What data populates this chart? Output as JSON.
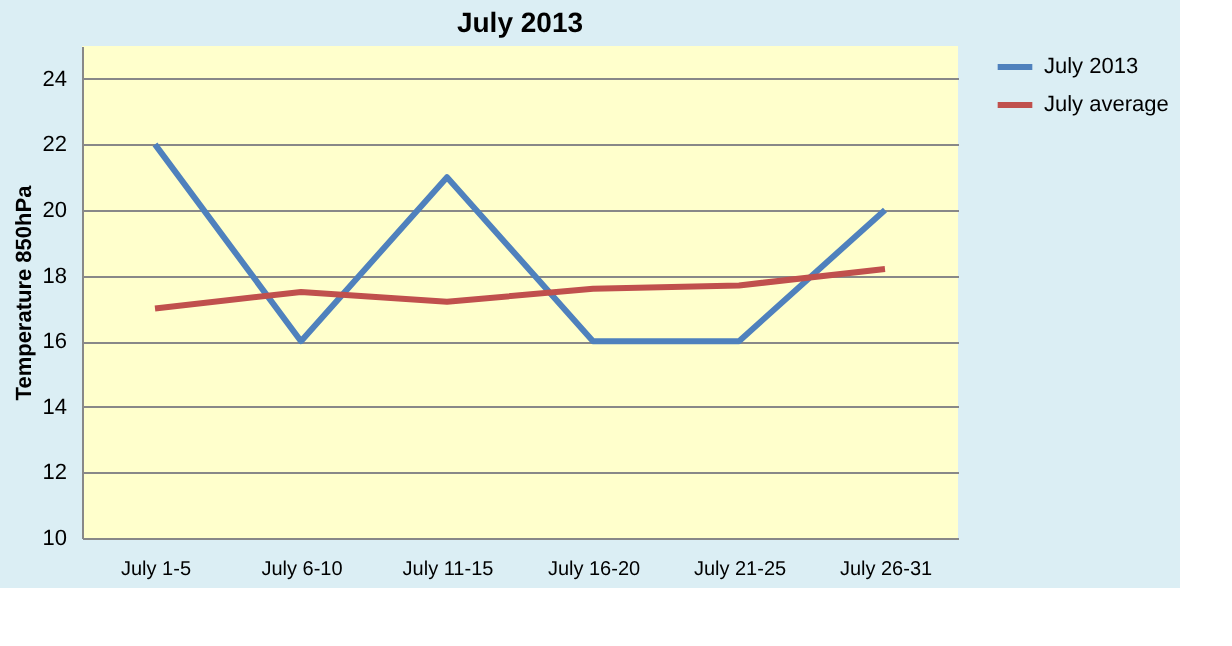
{
  "chart_data": {
    "type": "line",
    "title": "July 2013",
    "ylabel": "Temperature 850hPa",
    "categories": [
      "July 1-5",
      "July 6-10",
      "July 11-15",
      "July 16-20",
      "July 21-25",
      "July 26-31"
    ],
    "series": [
      {
        "name": "July 2013",
        "color": "#4f81bd",
        "values": [
          22,
          16,
          21,
          16,
          16,
          20
        ]
      },
      {
        "name": "July average",
        "color": "#c0504d",
        "values": [
          17.0,
          17.5,
          17.2,
          17.6,
          17.7,
          18.2
        ]
      }
    ],
    "ylim": [
      10,
      25
    ],
    "yticks": [
      10,
      12,
      14,
      16,
      18,
      20,
      22,
      24
    ],
    "grid": "y",
    "legend": "right",
    "marker": "none",
    "line_style": "solid"
  }
}
